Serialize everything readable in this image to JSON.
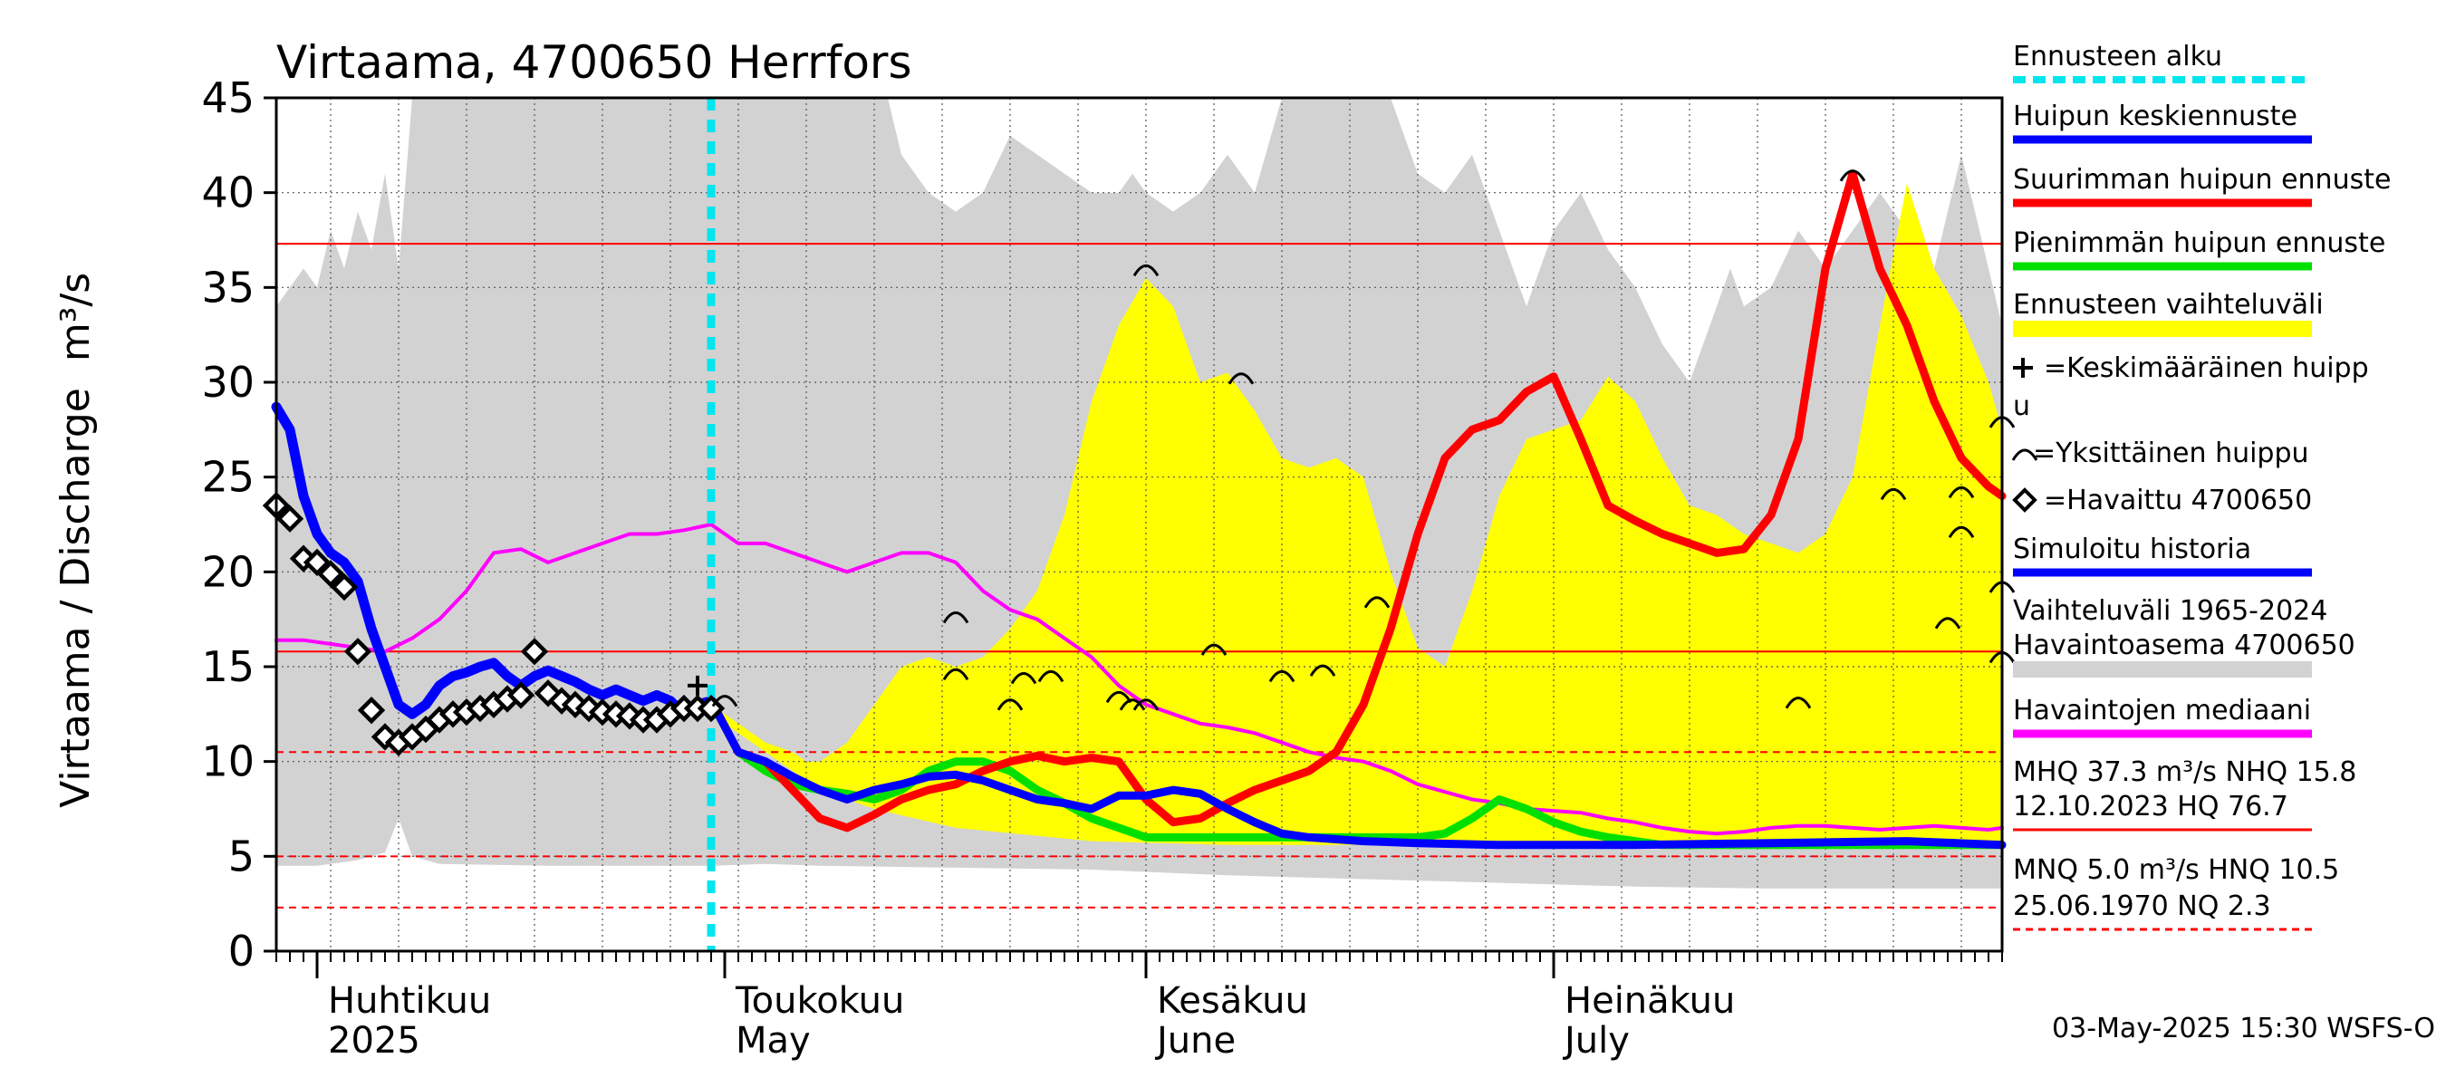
{
  "chart_data": {
    "type": "area",
    "title": "Virtaama, 4700650 Herrfors",
    "ylabel": "Virtaama / Discharge",
    "yunit": "m³/s",
    "ylim": [
      0,
      45
    ],
    "yticks": [
      0,
      5,
      10,
      15,
      20,
      25,
      30,
      35,
      40,
      45
    ],
    "xlim": [
      0,
      127
    ],
    "x_unit": "days from 2025-03-29",
    "gridlines": true,
    "month_labels": [
      {
        "fi": "Huhtikuu",
        "en": "2025",
        "x": 3
      },
      {
        "fi": "Toukokuu",
        "en": "May",
        "x": 33
      },
      {
        "fi": "Kesäkuu",
        "en": "June",
        "x": 64
      },
      {
        "fi": "Heinäkuu",
        "en": "July",
        "x": 94
      }
    ],
    "forecast_start_x": 32,
    "reference_lines": [
      {
        "name": "MHQ",
        "value": 37.3,
        "style": "solid"
      },
      {
        "name": "NHQ",
        "value": 15.8,
        "style": "solid"
      },
      {
        "name": "HNQ",
        "value": 10.5,
        "style": "dashed"
      },
      {
        "name": "MNQ",
        "value": 5.0,
        "style": "dashed"
      },
      {
        "name": "NQ",
        "value": 2.3,
        "style": "dashed"
      }
    ],
    "series": [
      {
        "name": "Vaihteluväli 1965-2024 upper",
        "color": "#d2d2d2",
        "x": [
          0,
          2,
          3,
          4,
          5,
          6,
          7,
          8,
          9,
          10,
          11,
          12,
          14,
          16,
          18,
          20,
          22,
          24,
          26,
          28,
          30,
          32,
          34,
          36,
          38,
          40,
          42,
          44,
          45,
          46,
          48,
          50,
          52,
          54,
          56,
          58,
          60,
          62,
          63,
          64,
          66,
          68,
          70,
          72,
          74,
          76,
          78,
          80,
          82,
          84,
          86,
          88,
          90,
          92,
          94,
          96,
          98,
          100,
          102,
          104,
          106,
          107,
          108,
          110,
          112,
          114,
          116,
          118,
          120,
          122,
          124,
          126,
          127
        ],
        "y": [
          34,
          36,
          35,
          38,
          36,
          39,
          37,
          41,
          36,
          45,
          45,
          45,
          45,
          45,
          45,
          45,
          45,
          45,
          45,
          45,
          45,
          45,
          45,
          45,
          45,
          45,
          45,
          45,
          45,
          42,
          40,
          39,
          40,
          43,
          42,
          41,
          40,
          40,
          41,
          40,
          39,
          40,
          42,
          40,
          45,
          45,
          45,
          45,
          45,
          41,
          40,
          42,
          38,
          34,
          38,
          40,
          37,
          35,
          32,
          30,
          34,
          36,
          34,
          35,
          38,
          36,
          38,
          40,
          38,
          36,
          42,
          36,
          33
        ]
      },
      {
        "name": "Vaihteluväli 1965-2024 lower",
        "color": "#d2d2d2",
        "x": [
          0,
          3,
          6,
          8,
          9,
          10,
          12,
          20,
          30,
          32,
          36,
          40,
          50,
          60,
          70,
          80,
          90,
          100,
          110,
          120,
          127
        ],
        "y": [
          4.5,
          4.5,
          4.8,
          5.2,
          7,
          5,
          4.6,
          4.5,
          4.5,
          4.5,
          4.6,
          4.5,
          4.4,
          4.3,
          4.0,
          3.8,
          3.6,
          3.4,
          3.3,
          3.3,
          3.3
        ]
      },
      {
        "name": "Ennusteen vaihteluväli upper",
        "color": "#ffff00",
        "x": [
          32,
          34,
          36,
          38,
          39,
          40,
          42,
          44,
          46,
          48,
          50,
          52,
          54,
          56,
          58,
          60,
          62,
          64,
          66,
          68,
          70,
          72,
          74,
          76,
          78,
          80,
          82,
          84,
          86,
          88,
          90,
          92,
          94,
          96,
          98,
          100,
          102,
          104,
          106,
          108,
          110,
          112,
          114,
          116,
          118,
          120,
          122,
          124,
          126,
          127
        ],
        "y": [
          13,
          12,
          11,
          10.5,
          10,
          10,
          11,
          13,
          15,
          15.5,
          15,
          15.5,
          17,
          19,
          23,
          29,
          33,
          35.5,
          34,
          30,
          30.5,
          28.5,
          26,
          25.5,
          26,
          25,
          20,
          16,
          15,
          19,
          24,
          27,
          27.5,
          28,
          30.3,
          29,
          26,
          23.5,
          23,
          22,
          21.5,
          21,
          22,
          25,
          33,
          40.5,
          36,
          33.5,
          30,
          27.5
        ]
      },
      {
        "name": "Ennusteen vaihteluväli lower",
        "color": "#ffff00",
        "x": [
          32,
          40,
          44,
          50,
          60,
          70,
          80,
          90,
          100,
          110,
          120,
          127
        ],
        "y": [
          12.5,
          8.5,
          7.5,
          6.5,
          5.8,
          5.6,
          5.6,
          5.6,
          5.6,
          5.6,
          5.6,
          5.7
        ]
      },
      {
        "name": "Havaintojen mediaani",
        "color": "#ff00ff",
        "x": [
          0,
          2,
          4,
          6,
          8,
          10,
          12,
          14,
          16,
          18,
          20,
          22,
          24,
          26,
          28,
          30,
          32,
          34,
          36,
          38,
          40,
          42,
          44,
          46,
          48,
          50,
          52,
          54,
          56,
          58,
          60,
          62,
          64,
          66,
          68,
          70,
          72,
          74,
          76,
          78,
          80,
          82,
          84,
          86,
          88,
          90,
          92,
          94,
          96,
          98,
          100,
          102,
          104,
          106,
          108,
          110,
          112,
          114,
          116,
          118,
          120,
          122,
          124,
          126,
          127
        ],
        "y": [
          16.4,
          16.4,
          16.2,
          16.0,
          15.8,
          16.5,
          17.5,
          19,
          21,
          21.2,
          20.5,
          21,
          21.5,
          22,
          22,
          22.2,
          22.5,
          21.5,
          21.5,
          21,
          20.5,
          20,
          20.5,
          21,
          21,
          20.5,
          19,
          18,
          17.5,
          16.5,
          15.5,
          14,
          13,
          12.5,
          12,
          11.8,
          11.5,
          11,
          10.5,
          10.2,
          10,
          9.5,
          8.8,
          8.4,
          8.0,
          7.8,
          7.5,
          7.4,
          7.3,
          7.0,
          6.8,
          6.5,
          6.3,
          6.2,
          6.3,
          6.5,
          6.6,
          6.6,
          6.5,
          6.4,
          6.5,
          6.6,
          6.5,
          6.4,
          6.5
        ]
      },
      {
        "name": "Simuloitu historia",
        "color": "#0000ff",
        "x": [
          0,
          1,
          2,
          3,
          4,
          5,
          6,
          7,
          8,
          9,
          10,
          11,
          12,
          13,
          14,
          15,
          16,
          17,
          18,
          19,
          20,
          21,
          22,
          23,
          24,
          25,
          26,
          27,
          28,
          29,
          30,
          31,
          32
        ],
        "y": [
          28.7,
          27.5,
          24,
          22,
          21,
          20.5,
          19.5,
          17,
          15,
          13,
          12.5,
          13,
          14,
          14.5,
          14.7,
          15,
          15.2,
          14.5,
          14,
          14.5,
          14.8,
          14.5,
          14.2,
          13.8,
          13.5,
          13.8,
          13.5,
          13.2,
          13.5,
          13.2,
          12.5,
          13,
          13.2
        ]
      },
      {
        "name": "Havaittu 4700650",
        "color": "#000000",
        "x": [
          0,
          1,
          2,
          3,
          4,
          5,
          6,
          7,
          8,
          9,
          10,
          11,
          12,
          13,
          14,
          15,
          16,
          17,
          18,
          19,
          20,
          21,
          22,
          23,
          24,
          25,
          26,
          27,
          28,
          29,
          30,
          31,
          32
        ],
        "y": [
          23.5,
          22.8,
          20.7,
          20.5,
          19.9,
          19.2,
          15.8,
          12.7,
          11.3,
          11.0,
          11.3,
          11.7,
          12.2,
          12.5,
          12.6,
          12.8,
          13.0,
          13.3,
          13.5,
          15.8,
          13.6,
          13.2,
          13.0,
          12.8,
          12.6,
          12.5,
          12.4,
          12.2,
          12.2,
          12.5,
          12.8,
          12.8,
          12.8
        ]
      },
      {
        "name": "Huipun keskiennuste",
        "color": "#0000ff",
        "x": [
          32,
          34,
          36,
          38,
          40,
          42,
          44,
          46,
          48,
          50,
          52,
          54,
          56,
          58,
          60,
          62,
          64,
          66,
          68,
          70,
          72,
          74,
          76,
          78,
          80,
          84,
          90,
          100,
          110,
          120,
          127
        ],
        "y": [
          13.2,
          10.5,
          10.0,
          9.2,
          8.5,
          8.0,
          8.5,
          8.8,
          9.2,
          9.3,
          9.0,
          8.5,
          8.0,
          7.8,
          7.5,
          8.2,
          8.2,
          8.5,
          8.3,
          7.5,
          6.8,
          6.2,
          6.0,
          5.9,
          5.8,
          5.7,
          5.6,
          5.6,
          5.7,
          5.8,
          5.6
        ]
      },
      {
        "name": "Suurimman huipun ennuste",
        "color": "#ff0000",
        "x": [
          32,
          34,
          36,
          38,
          40,
          42,
          44,
          46,
          48,
          50,
          52,
          54,
          56,
          58,
          60,
          62,
          64,
          66,
          68,
          70,
          72,
          74,
          76,
          78,
          80,
          82,
          84,
          86,
          88,
          90,
          92,
          94,
          96,
          98,
          100,
          102,
          104,
          106,
          108,
          110,
          112,
          114,
          116,
          118,
          120,
          122,
          124,
          126,
          127
        ],
        "y": [
          13.2,
          10.5,
          10.0,
          8.5,
          7.0,
          6.5,
          7.2,
          8.0,
          8.5,
          8.8,
          9.5,
          10.0,
          10.3,
          10.0,
          10.2,
          10.0,
          8.0,
          6.8,
          7.0,
          7.8,
          8.5,
          9.0,
          9.5,
          10.5,
          13.0,
          17.0,
          22.0,
          26.0,
          27.5,
          28.0,
          29.5,
          30.3,
          27.0,
          23.5,
          22.7,
          22.0,
          21.5,
          21.0,
          21.2,
          23.0,
          27.0,
          36.0,
          41.0,
          36.0,
          33.0,
          29.0,
          26.0,
          24.5,
          24.0
        ]
      },
      {
        "name": "Pienimmän huipun ennuste",
        "color": "#00e000",
        "x": [
          32,
          34,
          36,
          38,
          40,
          42,
          44,
          46,
          48,
          50,
          52,
          54,
          56,
          58,
          60,
          62,
          64,
          66,
          68,
          70,
          72,
          74,
          76,
          78,
          80,
          82,
          84,
          86,
          88,
          90,
          92,
          94,
          96,
          98,
          100,
          102,
          104,
          106,
          108,
          110,
          112,
          114,
          116,
          118,
          120,
          122,
          124,
          126,
          127
        ],
        "y": [
          13.2,
          10.5,
          9.5,
          8.8,
          8.5,
          8.3,
          8.0,
          8.5,
          9.5,
          10.0,
          10.0,
          9.5,
          8.5,
          7.8,
          7.0,
          6.5,
          6.0,
          6.0,
          6.0,
          6.0,
          6.0,
          6.0,
          6.0,
          6.0,
          6.0,
          6.0,
          6.0,
          6.2,
          7.0,
          8.0,
          7.5,
          6.8,
          6.3,
          6.0,
          5.8,
          5.6,
          5.6,
          5.6,
          5.6,
          5.6,
          5.6,
          5.6,
          5.6,
          5.6,
          5.6,
          5.6,
          5.6,
          5.6,
          5.6
        ]
      }
    ],
    "keskimaarainen_huippu": [
      {
        "x": 31,
        "y": 14
      }
    ],
    "yksittainen_huippu": [
      {
        "x": 33,
        "y": 13.3
      },
      {
        "x": 50,
        "y": 17.7
      },
      {
        "x": 50,
        "y": 14.7
      },
      {
        "x": 54,
        "y": 13.1
      },
      {
        "x": 55,
        "y": 14.5
      },
      {
        "x": 57,
        "y": 14.6
      },
      {
        "x": 62,
        "y": 13.5
      },
      {
        "x": 63,
        "y": 13.1
      },
      {
        "x": 64,
        "y": 13.1
      },
      {
        "x": 64,
        "y": 36
      },
      {
        "x": 71,
        "y": 30.3
      },
      {
        "x": 69,
        "y": 16
      },
      {
        "x": 74,
        "y": 14.6
      },
      {
        "x": 77,
        "y": 14.9
      },
      {
        "x": 81,
        "y": 18.5
      },
      {
        "x": 116,
        "y": 41
      },
      {
        "x": 119,
        "y": 24.2
      },
      {
        "x": 124,
        "y": 24.3
      },
      {
        "x": 124,
        "y": 22.2
      },
      {
        "x": 123,
        "y": 17.4
      },
      {
        "x": 127,
        "y": 28
      },
      {
        "x": 127,
        "y": 19.3
      },
      {
        "x": 127,
        "y": 15.6
      },
      {
        "x": 112,
        "y": 13.2
      }
    ],
    "legend": [
      {
        "label": "Ennusteen alku",
        "color": "#00e5ee",
        "style": "dotted"
      },
      {
        "label": "Huipun keskiennuste",
        "color": "#0000ff",
        "style": "line"
      },
      {
        "label": "Suurimman huipun ennuste",
        "color": "#ff0000",
        "style": "line"
      },
      {
        "label": "Pienimmän huipun ennuste",
        "color": "#00e000",
        "style": "line"
      },
      {
        "label": "Ennusteen vaihteluväli",
        "color": "#ffff00",
        "style": "band"
      },
      {
        "label": "=Keskimääräinen huipp",
        "color": "#000000",
        "style": "plus"
      },
      {
        "label": "u",
        "color": "#000000",
        "style": "none"
      },
      {
        "label": "=Yksittäinen huippu",
        "color": "#000000",
        "style": "arc"
      },
      {
        "label": "=Havaittu 4700650",
        "color": "#000000",
        "style": "diamond"
      },
      {
        "label": "Simuloitu historia",
        "color": "#0000ff",
        "style": "line"
      },
      {
        "label": "Vaihteluväli 1965-2024",
        "color": "#d2d2d2",
        "style": "none"
      },
      {
        "label": "Havaintoasema 4700650",
        "color": "#d2d2d2",
        "style": "band"
      },
      {
        "label": "Havaintojen mediaani",
        "color": "#ff00ff",
        "style": "line"
      },
      {
        "label": "MHQ 37.3 m³/s NHQ 15.8",
        "color": "#ff0000",
        "style": "none"
      },
      {
        "label": "12.10.2023 HQ 76.7",
        "color": "#ff0000",
        "style": "line"
      },
      {
        "label": "MNQ  5.0 m³/s HNQ 10.5",
        "color": "#ff0000",
        "style": "none"
      },
      {
        "label": "25.06.1970 NQ  2.3",
        "color": "#ff0000",
        "style": "dashed"
      }
    ],
    "footer": "03-May-2025 15:30 WSFS-O"
  }
}
